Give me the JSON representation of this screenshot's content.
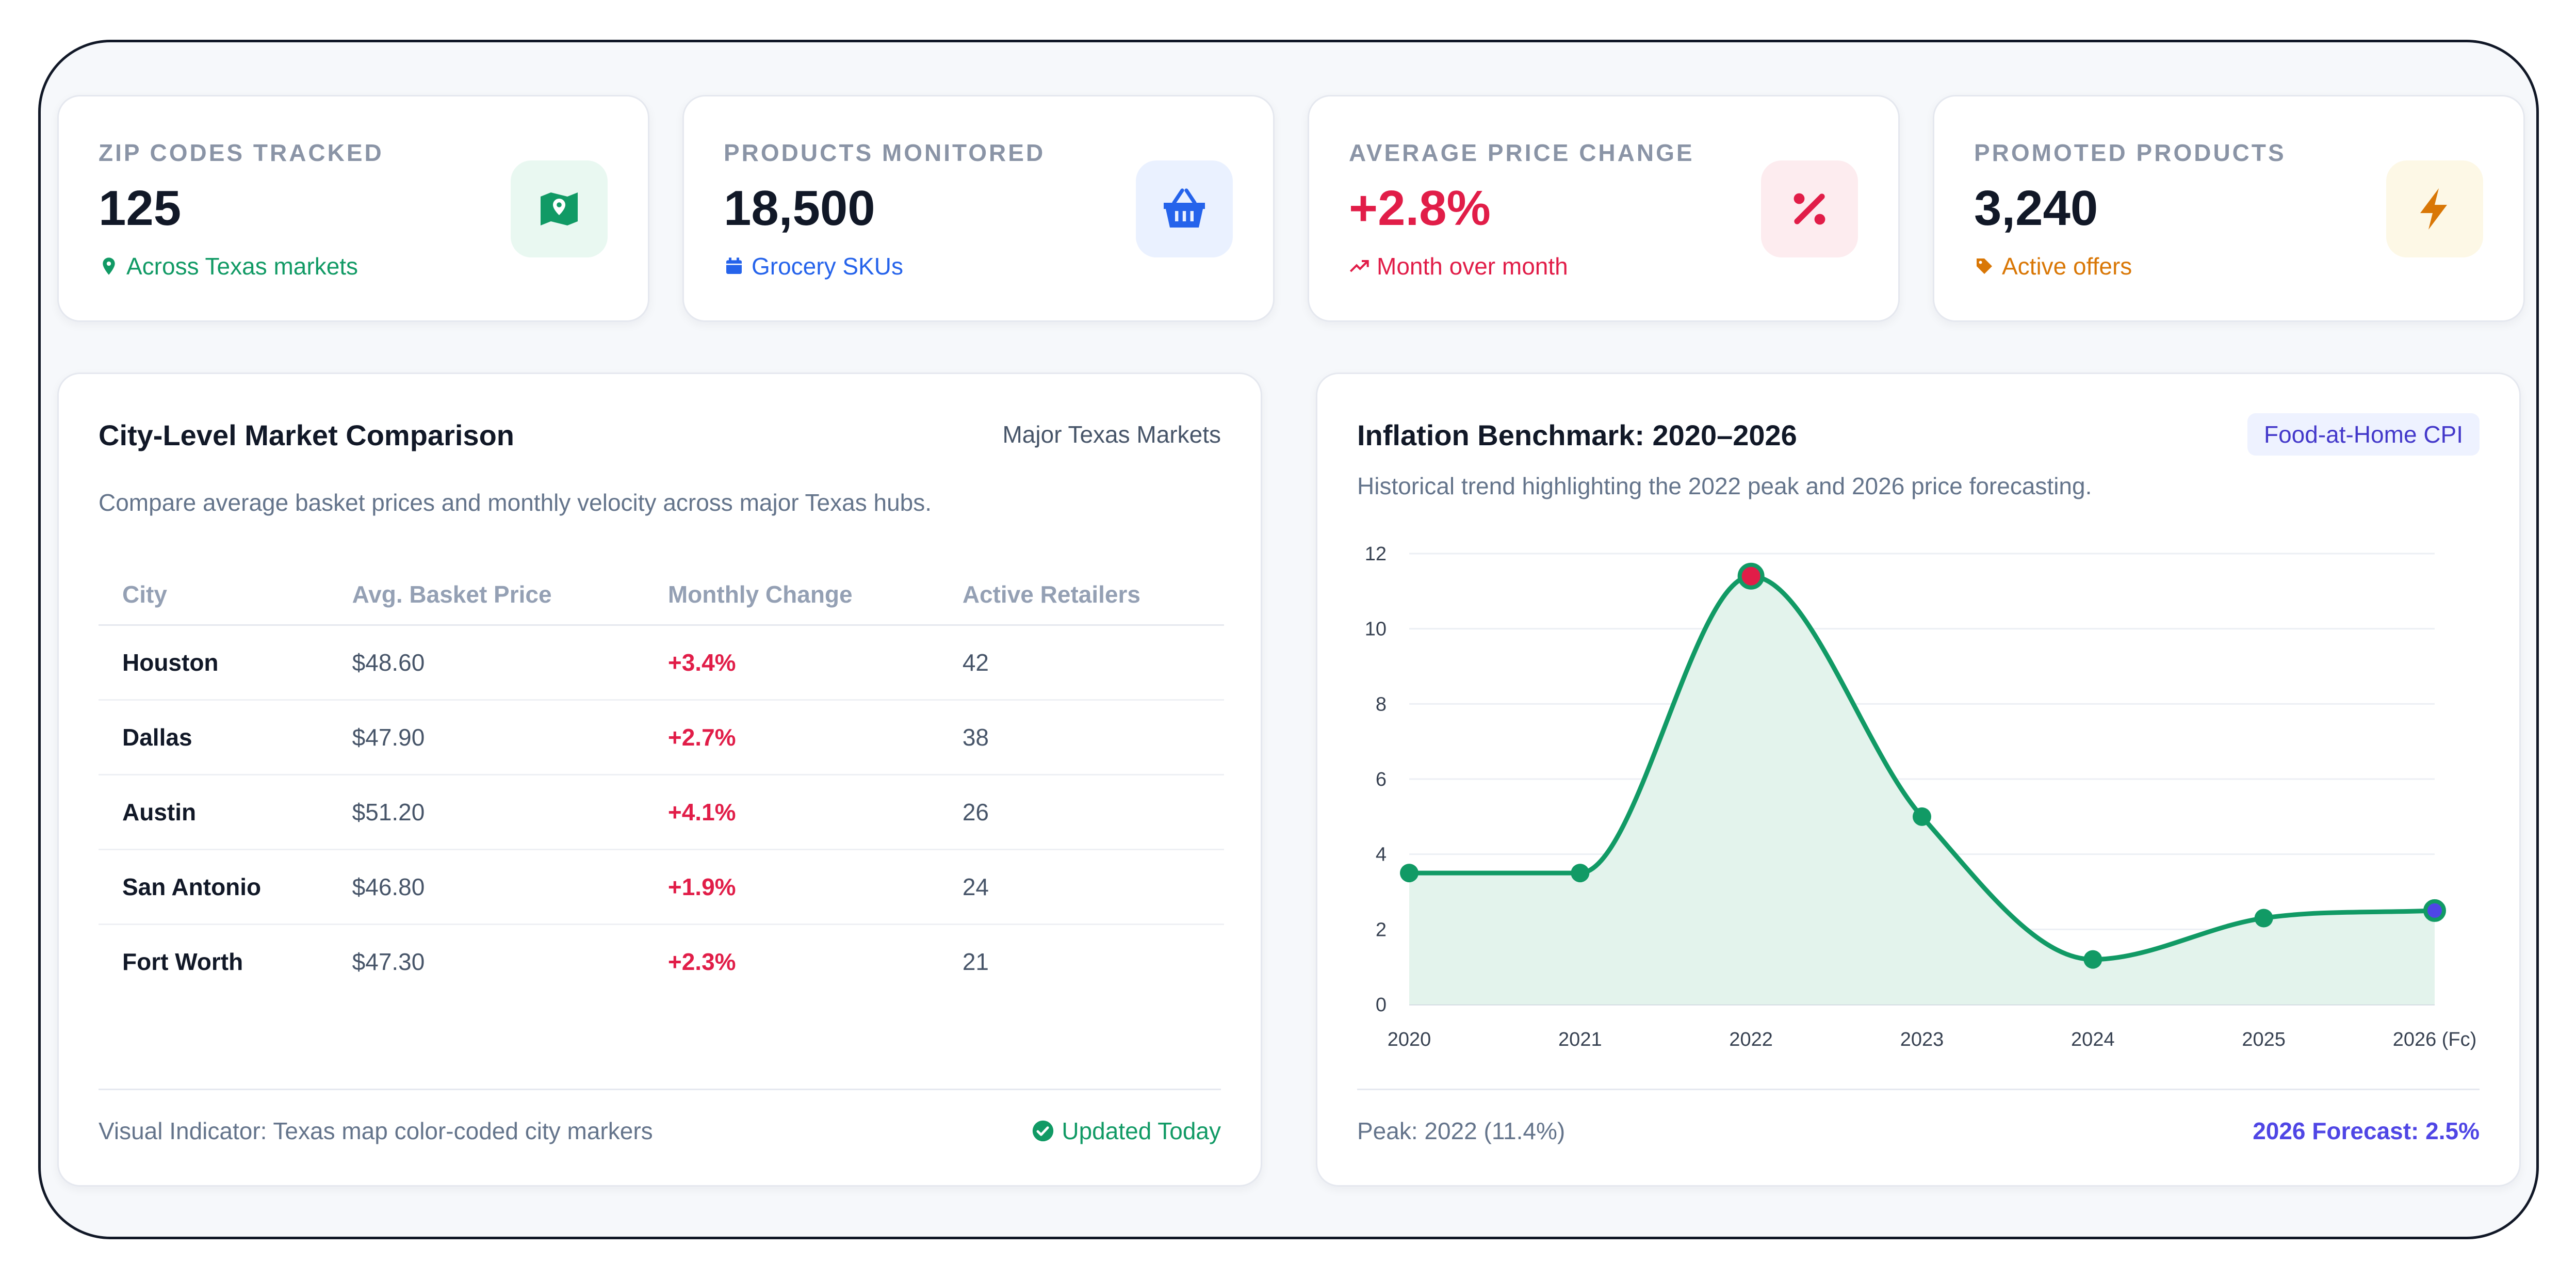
{
  "kpis": [
    {
      "label": "ZIP CODES TRACKED",
      "value": "125",
      "sub": "Across Texas markets",
      "icon": "map-icon",
      "color": "#119a65",
      "bg": "#e9f8f1"
    },
    {
      "label": "PRODUCTS MONITORED",
      "value": "18,500",
      "sub": "Grocery SKUs",
      "icon": "basket-icon",
      "color": "#2563eb",
      "bg": "#eaf1ff"
    },
    {
      "label": "AVERAGE PRICE CHANGE",
      "value": "+2.8%",
      "sub": "Month over month",
      "icon": "percent-icon",
      "color": "#e11d48",
      "bg": "#fdecef"
    },
    {
      "label": "PROMOTED PRODUCTS",
      "value": "3,240",
      "sub": "Active offers",
      "icon": "bolt-icon",
      "color": "#d97706",
      "bg": "#fdf8e6"
    }
  ],
  "market": {
    "title": "City-Level Market Comparison",
    "tag": "Major Texas Markets",
    "description": "Compare average basket prices and monthly velocity across major Texas hubs.",
    "columns": [
      "City",
      "Avg. Basket Price",
      "Monthly Change",
      "Active Retailers"
    ],
    "rows": [
      {
        "city": "Houston",
        "price": "$48.60",
        "change": "+3.4%",
        "retailers": "42"
      },
      {
        "city": "Dallas",
        "price": "$47.90",
        "change": "+2.7%",
        "retailers": "38"
      },
      {
        "city": "Austin",
        "price": "$51.20",
        "change": "+4.1%",
        "retailers": "26"
      },
      {
        "city": "San Antonio",
        "price": "$46.80",
        "change": "+1.9%",
        "retailers": "24"
      },
      {
        "city": "Fort Worth",
        "price": "$47.30",
        "change": "+2.3%",
        "retailers": "21"
      }
    ],
    "footer_note": "Visual Indicator: Texas map color-coded city markers",
    "status": "Updated Today"
  },
  "inflation": {
    "title": "Inflation Benchmark: 2020–2026",
    "badge": "Food-at-Home CPI",
    "description": "Historical trend highlighting the 2022 peak and 2026 price forecasting.",
    "footer_left": "Peak: 2022 (11.4%)",
    "footer_right": "2026 Forecast: 2.5%"
  },
  "chart_data": {
    "type": "area",
    "title": "Inflation Benchmark: 2020–2026",
    "x": [
      "2020",
      "2021",
      "2022",
      "2023",
      "2024",
      "2025",
      "2026 (Fc)"
    ],
    "series": [
      {
        "values": [
          3.5,
          3.5,
          11.4,
          5.0,
          1.2,
          2.3,
          2.5
        ]
      }
    ],
    "ylim": [
      0,
      12
    ],
    "yticks": [
      0,
      2,
      4,
      6,
      8,
      10,
      12
    ],
    "grid": true,
    "line_color": "#119a65",
    "fill_color": "#e3f3ec",
    "peak_color": "#e11d48",
    "forecast_color": "#4f46e5"
  }
}
